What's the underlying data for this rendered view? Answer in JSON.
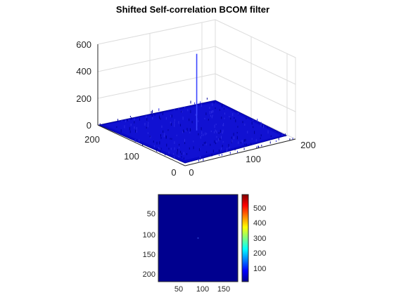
{
  "chart_data": [
    {
      "type": "surface",
      "title": "Shifted Self-correlation BCOM filter",
      "x_ticks": [
        "0",
        "100",
        "200"
      ],
      "y_ticks": [
        "0",
        "100",
        "200"
      ],
      "z_ticks": [
        "0",
        "200",
        "400",
        "600"
      ],
      "xlim": [
        0,
        225
      ],
      "ylim": [
        0,
        225
      ],
      "zlim": [
        0,
        600
      ],
      "grid": true,
      "colormap": "jet",
      "peak": {
        "x": 113,
        "y": 113,
        "z": 580
      },
      "background_level": 10,
      "surface_color": "#0a0ac8",
      "peak_color": "#3c46ff"
    },
    {
      "type": "heatmap",
      "x_ticks": [
        "50",
        "100",
        "150"
      ],
      "y_ticks": [
        "50",
        "100",
        "150",
        "200"
      ],
      "xlim": [
        1,
        225
      ],
      "ylim": [
        1,
        225
      ],
      "peak": {
        "x": 113,
        "y": 113,
        "value": 580
      },
      "colorbar_ticks": [
        "100",
        "200",
        "300",
        "400",
        "500"
      ],
      "colorbar_range": [
        0,
        580
      ],
      "colormap": "jet",
      "fill_color": "#00008f"
    }
  ]
}
